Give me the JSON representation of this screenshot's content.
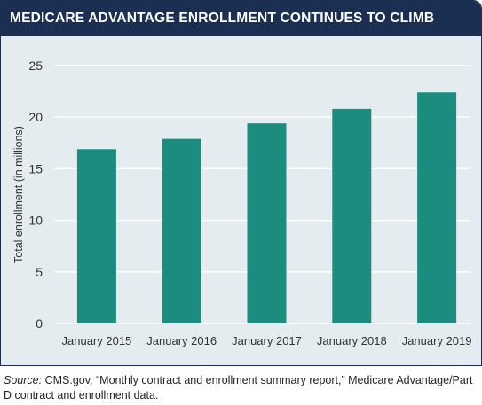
{
  "title": "MEDICARE ADVANTAGE ENROLLMENT CONTINUES TO CLIMB",
  "source_label": "Source:",
  "source_text": " CMS.gov, “Monthly contract and enrollment summary report,” Medicare Advantage/Part D contract and enrollment data.",
  "colors": {
    "header": "#1b2f52",
    "plot_bg": "#e5ecf0",
    "bar": "#1c8c7e",
    "grid": "#ffffff"
  },
  "chart_data": {
    "type": "bar",
    "title": "MEDICARE ADVANTAGE ENROLLMENT CONTINUES TO CLIMB",
    "categories": [
      "January 2015",
      "January 2016",
      "January 2017",
      "January 2018",
      "January 2019"
    ],
    "values": [
      16.9,
      17.9,
      19.4,
      20.8,
      22.4
    ],
    "xlabel": "",
    "ylabel": "Total enrollment (in millions)",
    "ylim": [
      0,
      25
    ],
    "yticks": [
      0,
      5,
      10,
      15,
      20,
      25
    ],
    "grid": true
  }
}
